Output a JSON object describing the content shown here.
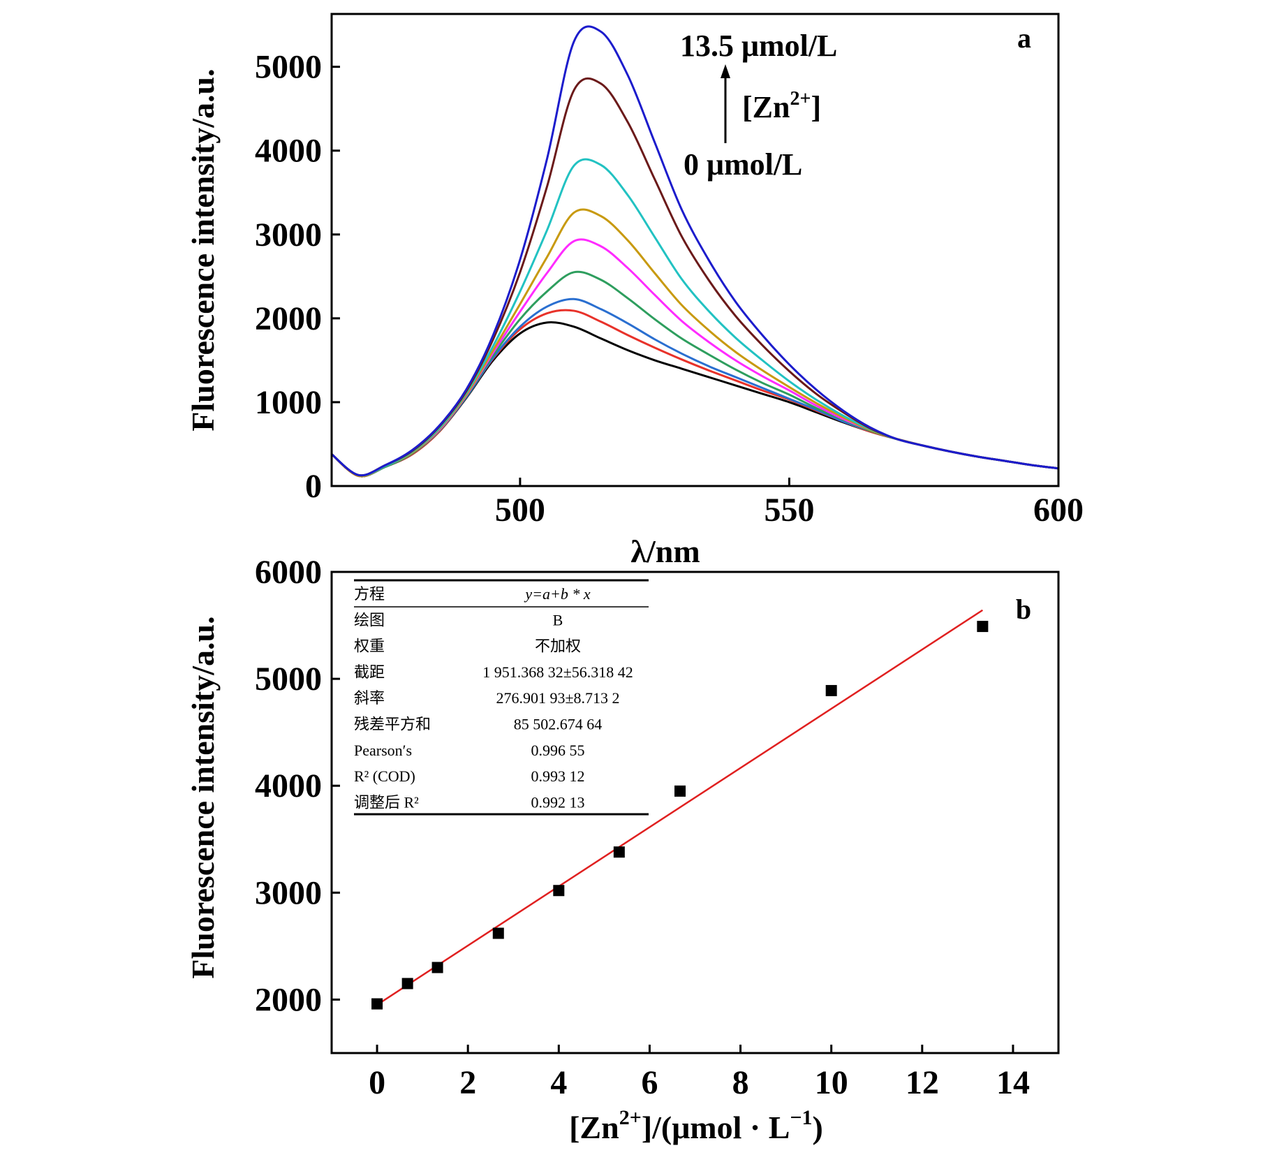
{
  "chart_data": [
    {
      "type": "line",
      "panel_label": "a",
      "xlabel": "λ/nm",
      "ylabel": "Fluorescence intensity/a.u.",
      "xlim": [
        465,
        600
      ],
      "ylim": [
        0,
        5630
      ],
      "xticks": [
        500,
        550,
        600
      ],
      "yticks": [
        0,
        1000,
        2000,
        3000,
        4000,
        5000
      ],
      "grid": false,
      "x": [
        465,
        470,
        475,
        480,
        485,
        490,
        495,
        500,
        505,
        510,
        515,
        520,
        525,
        530,
        535,
        540,
        545,
        550,
        555,
        560,
        565,
        570,
        575,
        580,
        585,
        590,
        595,
        600
      ],
      "series": [
        {
          "color": "#000000",
          "values": [
            380,
            120,
            230,
            380,
            650,
            1050,
            1500,
            1820,
            1950,
            1900,
            1760,
            1620,
            1500,
            1400,
            1300,
            1200,
            1100,
            1000,
            880,
            760,
            650,
            560,
            480,
            410,
            350,
            300,
            250,
            210
          ]
        },
        {
          "color": "#e8322a",
          "values": [
            380,
            120,
            230,
            380,
            650,
            1060,
            1520,
            1870,
            2060,
            2090,
            1960,
            1800,
            1650,
            1510,
            1380,
            1260,
            1140,
            1030,
            900,
            770,
            650,
            560,
            480,
            410,
            350,
            300,
            250,
            210
          ]
        },
        {
          "color": "#2a6fd0",
          "values": [
            380,
            120,
            230,
            390,
            660,
            1060,
            1530,
            1900,
            2140,
            2230,
            2110,
            1940,
            1750,
            1580,
            1430,
            1300,
            1170,
            1040,
            910,
            770,
            660,
            560,
            480,
            410,
            350,
            300,
            250,
            210
          ]
        },
        {
          "color": "#2e9e5e",
          "values": [
            380,
            120,
            230,
            390,
            660,
            1070,
            1560,
            1990,
            2320,
            2550,
            2460,
            2240,
            1990,
            1760,
            1570,
            1390,
            1230,
            1090,
            930,
            790,
            660,
            560,
            480,
            410,
            350,
            300,
            250,
            210
          ]
        },
        {
          "color": "#ff2bff",
          "values": [
            380,
            120,
            240,
            400,
            670,
            1080,
            1590,
            2080,
            2540,
            2920,
            2860,
            2600,
            2280,
            1970,
            1720,
            1500,
            1310,
            1140,
            960,
            800,
            670,
            560,
            480,
            410,
            350,
            300,
            250,
            210
          ]
        },
        {
          "color": "#c89a10",
          "values": [
            380,
            120,
            240,
            400,
            680,
            1090,
            1620,
            2170,
            2730,
            3260,
            3220,
            2930,
            2540,
            2160,
            1860,
            1600,
            1380,
            1180,
            990,
            820,
            670,
            560,
            480,
            410,
            350,
            300,
            250,
            210
          ]
        },
        {
          "color": "#22c2c2",
          "values": [
            380,
            130,
            240,
            410,
            690,
            1110,
            1670,
            2320,
            3050,
            3820,
            3830,
            3470,
            2970,
            2470,
            2090,
            1770,
            1500,
            1250,
            1030,
            840,
            680,
            560,
            480,
            410,
            350,
            300,
            250,
            210
          ]
        },
        {
          "color": "#6b1a1a",
          "values": [
            380,
            130,
            250,
            420,
            710,
            1130,
            1750,
            2550,
            3570,
            4720,
            4800,
            4340,
            3660,
            2980,
            2460,
            2030,
            1680,
            1370,
            1100,
            880,
            690,
            560,
            480,
            410,
            350,
            300,
            250,
            210
          ]
        },
        {
          "color": "#1c1ccc",
          "values": [
            380,
            130,
            250,
            430,
            720,
            1150,
            1800,
            2700,
            3900,
            5300,
            5420,
            4900,
            4100,
            3300,
            2700,
            2200,
            1800,
            1450,
            1150,
            900,
            700,
            560,
            480,
            410,
            350,
            300,
            250,
            210
          ]
        }
      ],
      "annotations": {
        "top_label": "13.5 μmol/L",
        "arrow_label": "[Zn",
        "arrow_label_sup": "2+",
        "arrow_label_end": "]",
        "bottom_label": "0 μmol/L"
      }
    },
    {
      "type": "scatter",
      "panel_label": "b",
      "xlabel_parts": [
        "[Zn",
        "2+",
        "]/(μmol · L",
        "−1",
        ")"
      ],
      "ylabel": "Fluorescence intensity/a.u.",
      "xlim": [
        -1,
        15
      ],
      "ylim": [
        1500,
        6000
      ],
      "xticks": [
        0,
        2,
        4,
        6,
        8,
        10,
        12,
        14
      ],
      "yticks": [
        2000,
        3000,
        4000,
        5000,
        6000
      ],
      "grid": false,
      "points": {
        "x": [
          0,
          0.67,
          1.33,
          2.67,
          4.0,
          5.33,
          6.67,
          10.0,
          13.33
        ],
        "y": [
          1960,
          2150,
          2300,
          2620,
          3020,
          3380,
          3950,
          4890,
          5490
        ],
        "color": "#000000"
      },
      "fit": {
        "intercept": 1951.36832,
        "slope": 276.90193,
        "x_range": [
          0,
          13.33
        ],
        "color": "#e02020"
      },
      "fit_table": [
        {
          "label": "方程",
          "value": "y=a+b * x"
        },
        {
          "label": "绘图",
          "value": "B"
        },
        {
          "label": "权重",
          "value": "不加权"
        },
        {
          "label": "截距",
          "value": "1 951.368 32±56.318 42"
        },
        {
          "label": "斜率",
          "value": "276.901 93±8.713 2"
        },
        {
          "label": "残差平方和",
          "value": "85 502.674 64"
        },
        {
          "label": "Pearson′s",
          "value": "0.996 55"
        },
        {
          "label": "R² (COD)",
          "value": "0.993 12"
        },
        {
          "label": "调整后 R²",
          "value": "0.992 13"
        }
      ]
    }
  ]
}
